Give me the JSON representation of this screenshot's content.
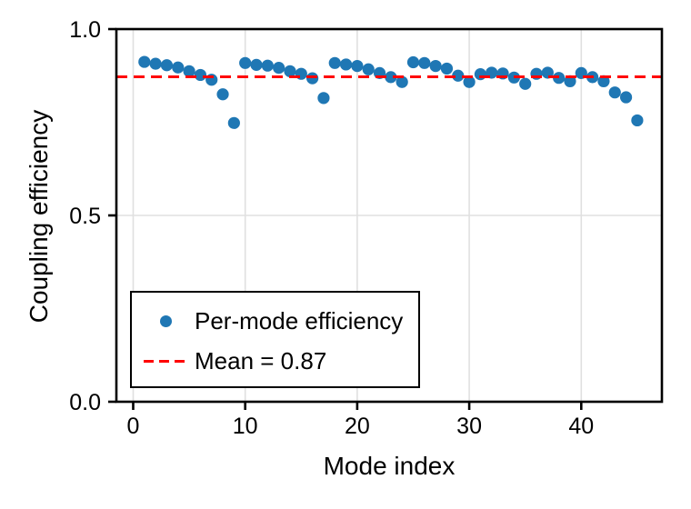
{
  "chart_data": {
    "type": "scatter",
    "title": "",
    "xlabel": "Mode index",
    "ylabel": "Coupling efficiency",
    "xlim": [
      -1.5,
      47.2
    ],
    "ylim": [
      0.0,
      1.0
    ],
    "x_ticks": [
      0,
      10,
      20,
      30,
      40
    ],
    "x_tick_labels": [
      "0",
      "10",
      "20",
      "30",
      "40"
    ],
    "y_ticks": [
      0.0,
      0.5,
      1.0
    ],
    "y_tick_labels": [
      "0.0",
      "0.5",
      "1.0"
    ],
    "grid": true,
    "grid_color": "#e0e0e0",
    "legend_position": "lower left",
    "series": [
      {
        "name": "Per-mode efficiency",
        "type": "scatter",
        "marker": "dot",
        "color": "#1f77b4",
        "x": [
          1,
          2,
          3,
          4,
          5,
          6,
          7,
          8,
          9,
          10,
          11,
          12,
          13,
          14,
          15,
          16,
          17,
          18,
          19,
          20,
          21,
          22,
          23,
          24,
          25,
          26,
          27,
          28,
          29,
          30,
          31,
          32,
          33,
          34,
          35,
          36,
          37,
          38,
          39,
          40,
          41,
          42,
          43,
          44,
          45
        ],
        "y": [
          0.912,
          0.907,
          0.903,
          0.897,
          0.887,
          0.877,
          0.864,
          0.825,
          0.748,
          0.909,
          0.904,
          0.902,
          0.896,
          0.887,
          0.88,
          0.868,
          0.815,
          0.909,
          0.905,
          0.901,
          0.892,
          0.882,
          0.871,
          0.858,
          0.911,
          0.909,
          0.901,
          0.894,
          0.875,
          0.858,
          0.879,
          0.883,
          0.881,
          0.87,
          0.853,
          0.88,
          0.883,
          0.869,
          0.86,
          0.882,
          0.871,
          0.86,
          0.83,
          0.817,
          0.755
        ]
      },
      {
        "name": "Mean = 0.87",
        "type": "hline",
        "linestyle": "dashed",
        "color": "#ff0000",
        "value": 0.872
      }
    ]
  }
}
